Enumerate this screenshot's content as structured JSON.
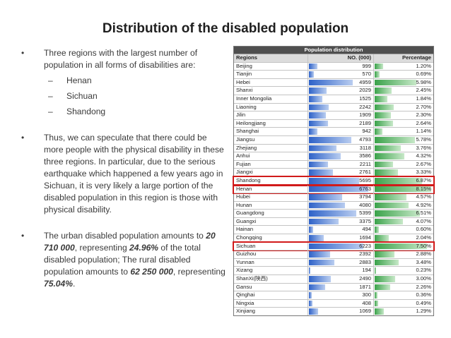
{
  "title": "Distribution of the disabled population",
  "left": {
    "bullet1": "Three regions with the largest number of population in all forms of disabilities are:",
    "regions": [
      "Henan",
      "Sichuan",
      "Shandong"
    ],
    "bullet2": "Thus, we can speculate that there could be more people with the physical disability in these three regions. In particular, due to the serious earthquake which happened a few years ago in Sichuan, it is very likely a large portion of the disabled population in this region is those with physical disability.",
    "b3_p1": "The urban disabled population amounts to ",
    "b3_urban": "20 710 000",
    "b3_p2": ", representing ",
    "b3_urban_pct": "24.96%",
    "b3_p3": " of the total disabled population; The rural disabled population amounts to ",
    "b3_rural": "62 250 000",
    "b3_p4": ", representing ",
    "b3_rural_pct": "75.04%",
    "b3_p5": "."
  },
  "table": {
    "title": "Population distribution",
    "col_regions": "Regions",
    "col_no": "NO. (000)",
    "col_pct": "Percentage",
    "highlight_color": "#d11a1a",
    "rows": [
      {
        "region": "Beijing",
        "no": "999",
        "pct": "1.20%",
        "n": 999,
        "p": 1.2
      },
      {
        "region": "Tianjin",
        "no": "570",
        "pct": "0.69%",
        "n": 570,
        "p": 0.69
      },
      {
        "region": "Hebei",
        "no": "4959",
        "pct": "5.98%",
        "n": 4959,
        "p": 5.98
      },
      {
        "region": "Shanxi",
        "no": "2029",
        "pct": "2.45%",
        "n": 2029,
        "p": 2.45
      },
      {
        "region": "Inner Mongolia",
        "no": "1525",
        "pct": "1.84%",
        "n": 1525,
        "p": 1.84
      },
      {
        "region": "Liaoning",
        "no": "2242",
        "pct": "2.70%",
        "n": 2242,
        "p": 2.7
      },
      {
        "region": "Jilin",
        "no": "1909",
        "pct": "2.30%",
        "n": 1909,
        "p": 2.3
      },
      {
        "region": "Heilongjiang",
        "no": "2189",
        "pct": "2.64%",
        "n": 2189,
        "p": 2.64
      },
      {
        "region": "Shanghai",
        "no": "942",
        "pct": "1.14%",
        "n": 942,
        "p": 1.14
      },
      {
        "region": "Jiangsu",
        "no": "4793",
        "pct": "5.78%",
        "n": 4793,
        "p": 5.78
      },
      {
        "region": "Zhejiang",
        "no": "3118",
        "pct": "3.76%",
        "n": 3118,
        "p": 3.76
      },
      {
        "region": "Anhui",
        "no": "3586",
        "pct": "4.32%",
        "n": 3586,
        "p": 4.32
      },
      {
        "region": "Fujian",
        "no": "2211",
        "pct": "2.67%",
        "n": 2211,
        "p": 2.67
      },
      {
        "region": "Jiangxi",
        "no": "2761",
        "pct": "3.33%",
        "n": 2761,
        "p": 3.33
      },
      {
        "region": "Shandong",
        "no": "5695",
        "pct": "6.87%",
        "n": 5695,
        "p": 6.87,
        "highlight": true
      },
      {
        "region": "Henan",
        "no": "6763",
        "pct": "8.15%",
        "n": 6763,
        "p": 8.15,
        "highlight": true
      },
      {
        "region": "Hubei",
        "no": "3794",
        "pct": "4.57%",
        "n": 3794,
        "p": 4.57
      },
      {
        "region": "Hunan",
        "no": "4080",
        "pct": "4.92%",
        "n": 4080,
        "p": 4.92
      },
      {
        "region": "Guangdong",
        "no": "5399",
        "pct": "6.51%",
        "n": 5399,
        "p": 6.51
      },
      {
        "region": "Guangxi",
        "no": "3375",
        "pct": "4.07%",
        "n": 3375,
        "p": 4.07
      },
      {
        "region": "Hainan",
        "no": "494",
        "pct": "0.60%",
        "n": 494,
        "p": 0.6
      },
      {
        "region": "Chongqing",
        "no": "1694",
        "pct": "2.04%",
        "n": 1694,
        "p": 2.04
      },
      {
        "region": "Sichuan",
        "no": "6223",
        "pct": "7.50%",
        "n": 6223,
        "p": 7.5,
        "highlight": true
      },
      {
        "region": "Guizhou",
        "no": "2392",
        "pct": "2.88%",
        "n": 2392,
        "p": 2.88
      },
      {
        "region": "Yunnan",
        "no": "2883",
        "pct": "3.48%",
        "n": 2883,
        "p": 3.48
      },
      {
        "region": "Xizang",
        "no": "194",
        "pct": "0.23%",
        "n": 194,
        "p": 0.23
      },
      {
        "region": "ShanXi(陕西)",
        "no": "2490",
        "pct": "3.00%",
        "n": 2490,
        "p": 3.0
      },
      {
        "region": "Gansu",
        "no": "1871",
        "pct": "2.26%",
        "n": 1871,
        "p": 2.26
      },
      {
        "region": "Qinghai",
        "no": "300",
        "pct": "0.36%",
        "n": 300,
        "p": 0.36
      },
      {
        "region": "Ningxia",
        "no": "408",
        "pct": "0.49%",
        "n": 408,
        "p": 0.49
      },
      {
        "region": "Xinjiang",
        "no": "1069",
        "pct": "1.29%",
        "n": 1069,
        "p": 1.29
      }
    ]
  }
}
